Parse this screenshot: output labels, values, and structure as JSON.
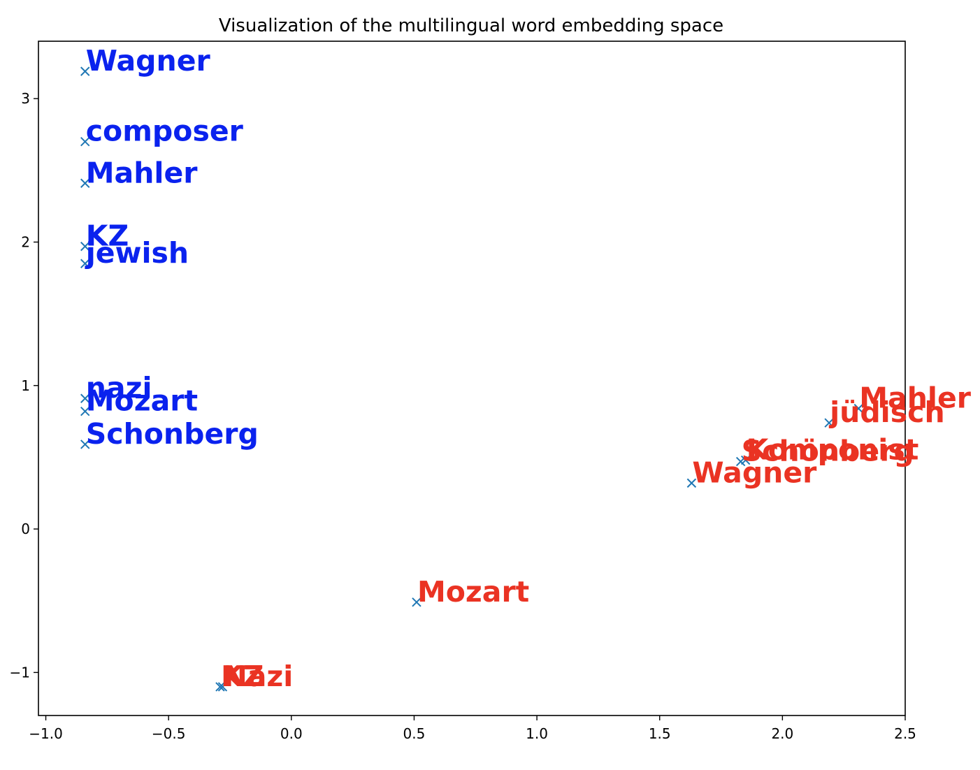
{
  "chart_data": {
    "type": "scatter",
    "title": "Visualization of the multilingual word embedding space",
    "xlabel": "",
    "ylabel": "",
    "xlim": [
      -1.03,
      2.5
    ],
    "ylim": [
      -1.3,
      3.4
    ],
    "xticks": [
      {
        "value": -1.0,
        "label": "−1.0"
      },
      {
        "value": -0.5,
        "label": "−0.5"
      },
      {
        "value": 0.0,
        "label": "0.0"
      },
      {
        "value": 0.5,
        "label": "0.5"
      },
      {
        "value": 1.0,
        "label": "1.0"
      },
      {
        "value": 1.5,
        "label": "1.5"
      },
      {
        "value": 2.0,
        "label": "2.0"
      },
      {
        "value": 2.5,
        "label": "2.5"
      }
    ],
    "yticks": [
      {
        "value": -1,
        "label": "−1"
      },
      {
        "value": 0,
        "label": "0"
      },
      {
        "value": 1,
        "label": "1"
      },
      {
        "value": 2,
        "label": "2"
      },
      {
        "value": 3,
        "label": "3"
      }
    ],
    "grid": false,
    "marker": "x",
    "marker_color": "#1f77b4",
    "series": [
      {
        "color": "#0a22ee",
        "points": [
          {
            "label": "Wagner",
            "x": -0.84,
            "y": 3.19
          },
          {
            "label": "composer",
            "x": -0.84,
            "y": 2.7
          },
          {
            "label": "Mahler",
            "x": -0.84,
            "y": 2.41
          },
          {
            "label": "KZ",
            "x": -0.84,
            "y": 1.97
          },
          {
            "label": "jewish",
            "x": -0.84,
            "y": 1.85
          },
          {
            "label": "nazi",
            "x": -0.84,
            "y": 0.91
          },
          {
            "label": "Mozart",
            "x": -0.84,
            "y": 0.82
          },
          {
            "label": "Schonberg",
            "x": -0.84,
            "y": 0.59
          }
        ]
      },
      {
        "color": "#ea3323",
        "points": [
          {
            "label": "Mahler",
            "x": 2.31,
            "y": 0.84
          },
          {
            "label": "jüdisch",
            "x": 2.19,
            "y": 0.74
          },
          {
            "label": "Komponist",
            "x": 1.85,
            "y": 0.48
          },
          {
            "label": "Schönberg",
            "x": 1.83,
            "y": 0.47
          },
          {
            "label": "Wagner",
            "x": 1.63,
            "y": 0.32
          },
          {
            "label": "Mozart",
            "x": 0.51,
            "y": -0.51
          },
          {
            "label": "KZ",
            "x": -0.29,
            "y": -1.1
          },
          {
            "label": "Nazi",
            "x": -0.28,
            "y": -1.1
          }
        ]
      }
    ]
  }
}
